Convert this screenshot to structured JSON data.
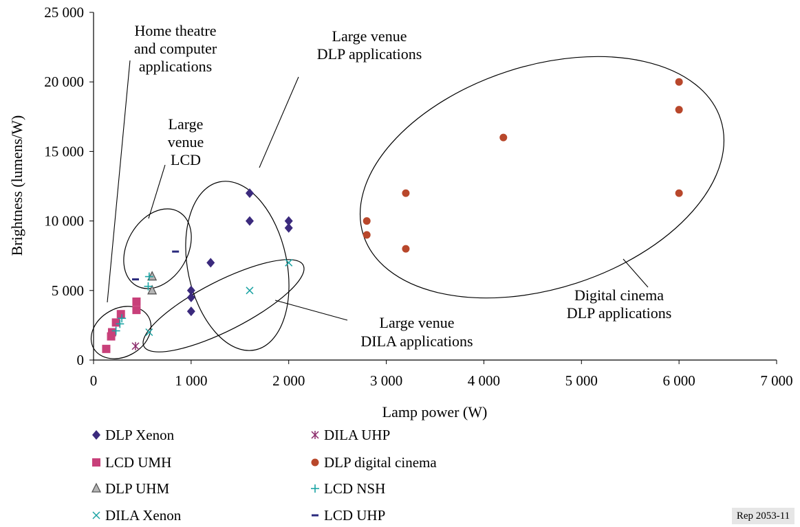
{
  "chart_data": {
    "type": "scatter",
    "xlabel": "Lamp power (W)",
    "ylabel": "Brightness (lumens/W)",
    "xlim": [
      0,
      7000
    ],
    "ylim": [
      0,
      25000
    ],
    "x_ticks": [
      0,
      1000,
      2000,
      3000,
      4000,
      5000,
      6000,
      7000
    ],
    "x_tick_labels": [
      "0",
      "1 000",
      "2 000",
      "3 000",
      "4 000",
      "5 000",
      "6 000",
      "7 000"
    ],
    "y_ticks": [
      0,
      5000,
      10000,
      15000,
      20000,
      25000
    ],
    "y_tick_labels": [
      "0",
      "5 000",
      "10 000",
      "15 000",
      "20 000",
      "25 000"
    ],
    "grid": false,
    "legend_position": "bottom",
    "series": [
      {
        "name": "DLP Xenon",
        "marker": "diamond",
        "color": "#3b2a7d",
        "points": [
          [
            1000,
            3500
          ],
          [
            1000,
            4500
          ],
          [
            1000,
            5000
          ],
          [
            1200,
            7000
          ],
          [
            1600,
            10000
          ],
          [
            1600,
            12000
          ],
          [
            2000,
            9500
          ],
          [
            2000,
            10000
          ]
        ]
      },
      {
        "name": "DILA UHP",
        "marker": "star",
        "color": "#8b2a6a",
        "points": [
          [
            430,
            1000
          ]
        ]
      },
      {
        "name": "LCD UMH",
        "marker": "square",
        "color": "#c8407a",
        "points": [
          [
            130,
            800
          ],
          [
            180,
            1700
          ],
          [
            190,
            2000
          ],
          [
            230,
            2700
          ],
          [
            280,
            3300
          ],
          [
            440,
            3600
          ],
          [
            440,
            4200
          ]
        ]
      },
      {
        "name": "DLP digital cinema",
        "marker": "circle",
        "color": "#b8472b",
        "points": [
          [
            2800,
            9000
          ],
          [
            2800,
            10000
          ],
          [
            3200,
            8000
          ],
          [
            3200,
            12000
          ],
          [
            4200,
            16000
          ],
          [
            6000,
            12000
          ],
          [
            6000,
            18000
          ],
          [
            6000,
            20000
          ]
        ]
      },
      {
        "name": "DLP UHM",
        "marker": "triangle",
        "color": "#555555",
        "points": [
          [
            600,
            5000
          ],
          [
            600,
            6000
          ]
        ]
      },
      {
        "name": "LCD NSH",
        "marker": "plus",
        "color": "#1aa3a3",
        "points": [
          [
            230,
            2100
          ],
          [
            270,
            2600
          ],
          [
            290,
            3000
          ],
          [
            560,
            5300
          ],
          [
            570,
            6000
          ]
        ]
      },
      {
        "name": "DILA Xenon",
        "marker": "x",
        "color": "#1aa3a3",
        "points": [
          [
            570,
            2000
          ],
          [
            1600,
            5000
          ],
          [
            2000,
            7000
          ]
        ]
      },
      {
        "name": "LCD UHP",
        "marker": "dash",
        "color": "#2a2a7d",
        "points": [
          [
            430,
            5800
          ],
          [
            840,
            7800
          ]
        ]
      }
    ],
    "annotations": [
      {
        "lines": [
          "Home theatre",
          "and computer",
          "applications"
        ]
      },
      {
        "lines": [
          "Large",
          "venue",
          "LCD"
        ]
      },
      {
        "lines": [
          "Large venue",
          "DLP applications"
        ]
      },
      {
        "lines": [
          "Large venue",
          "DILA applications"
        ]
      },
      {
        "lines": [
          "Digital cinema",
          "DLP applications"
        ]
      }
    ],
    "figure_code": "Rep 2053-11"
  }
}
